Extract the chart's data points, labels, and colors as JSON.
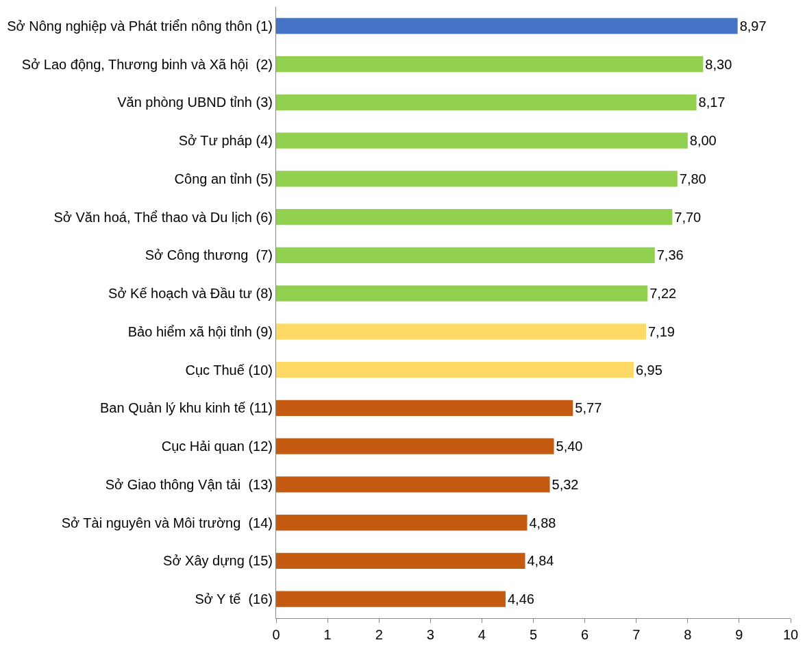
{
  "chart_data": {
    "type": "bar",
    "orientation": "horizontal",
    "categories": [
      "Sở Nông nghiệp và Phát triển nông thôn (1)",
      "Sở Lao động, Thương binh và Xã hội  (2)",
      "Văn phòng UBND tỉnh (3)",
      "Sở Tư pháp (4)",
      "Công an tỉnh (5)",
      "Sở Văn hoá, Thể thao và Du lịch (6)",
      "Sở Công thương  (7)",
      "Sở Kế hoạch và Đầu tư (8)",
      "Bảo hiểm xã hội tỉnh (9)",
      "Cục Thuế (10)",
      "Ban Quản lý khu kinh tế (11)",
      "Cục Hải quan (12)",
      "Sở Giao thông Vận tải  (13)",
      "Sở Tài nguyên và Môi trường  (14)",
      "Sở Xây dựng (15)",
      "Sở Y tế  (16)"
    ],
    "values": [
      8.97,
      8.3,
      8.17,
      8.0,
      7.8,
      7.7,
      7.36,
      7.22,
      7.19,
      6.95,
      5.77,
      5.4,
      5.32,
      4.88,
      4.84,
      4.46
    ],
    "value_labels": [
      "8,97",
      "8,30",
      "8,17",
      "8,00",
      "7,80",
      "7,70",
      "7,36",
      "7,22",
      "7,19",
      "6,95",
      "5,77",
      "5,40",
      "5,32",
      "4,88",
      "4,84",
      "4,46"
    ],
    "colors": [
      "#4472c4",
      "#92d050",
      "#92d050",
      "#92d050",
      "#92d050",
      "#92d050",
      "#92d050",
      "#92d050",
      "#ffd966",
      "#ffd966",
      "#c55a11",
      "#c55a11",
      "#c55a11",
      "#c55a11",
      "#c55a11",
      "#c55a11"
    ],
    "xlim": [
      0,
      10
    ],
    "xticks": [
      0,
      1,
      2,
      3,
      4,
      5,
      6,
      7,
      8,
      9,
      10
    ],
    "legend": false
  }
}
